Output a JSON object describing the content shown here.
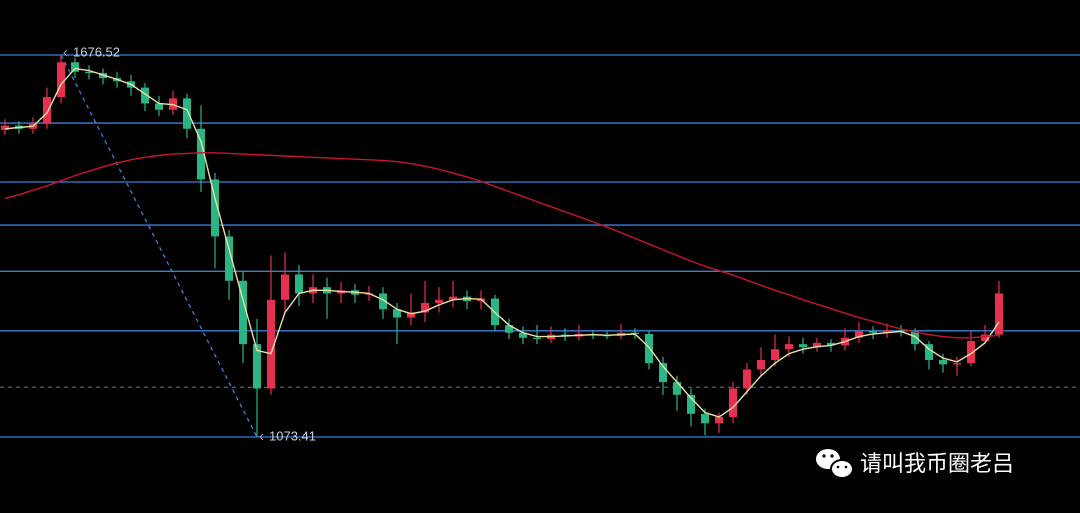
{
  "chart_data": {
    "type": "candlestick",
    "open": [
      1558,
      1565,
      1560,
      1568,
      1610,
      1665,
      1650,
      1648,
      1640,
      1635,
      1625,
      1600,
      1590,
      1608,
      1560,
      1480,
      1390,
      1320,
      1220,
      1150,
      1290,
      1330,
      1300,
      1310,
      1300,
      1305,
      1298,
      1300,
      1275,
      1262,
      1270,
      1285,
      1290,
      1295,
      1288,
      1292,
      1250,
      1238,
      1230,
      1228,
      1235,
      1232,
      1236,
      1234,
      1233,
      1238,
      1236,
      1190,
      1160,
      1140,
      1110,
      1095,
      1105,
      1150,
      1180,
      1195,
      1212,
      1220,
      1215,
      1222,
      1218,
      1230,
      1240,
      1238,
      1242,
      1240,
      1220,
      1195,
      1188,
      1190,
      1225,
      1235
    ],
    "high": [
      1575,
      1572,
      1578,
      1625,
      1676.52,
      1672,
      1660,
      1655,
      1650,
      1645,
      1632,
      1612,
      1620,
      1615,
      1597,
      1490,
      1400,
      1335,
      1260,
      1360,
      1365,
      1345,
      1330,
      1325,
      1318,
      1315,
      1312,
      1310,
      1285,
      1300,
      1320,
      1310,
      1320,
      1305,
      1305,
      1298,
      1260,
      1248,
      1250,
      1248,
      1245,
      1250,
      1242,
      1240,
      1252,
      1245,
      1240,
      1200,
      1170,
      1150,
      1118,
      1112,
      1160,
      1190,
      1215,
      1235,
      1232,
      1230,
      1230,
      1228,
      1245,
      1255,
      1248,
      1252,
      1250,
      1245,
      1225,
      1205,
      1200,
      1240,
      1250,
      1320
    ],
    "low": [
      1550,
      1552,
      1552,
      1560,
      1600,
      1640,
      1638,
      1630,
      1625,
      1612,
      1588,
      1580,
      1582,
      1545,
      1460,
      1340,
      1290,
      1190,
      1073.41,
      1140,
      1270,
      1280,
      1285,
      1260,
      1285,
      1285,
      1288,
      1260,
      1220,
      1250,
      1255,
      1270,
      1278,
      1275,
      1275,
      1240,
      1228,
      1220,
      1220,
      1222,
      1225,
      1226,
      1228,
      1228,
      1228,
      1228,
      1180,
      1140,
      1115,
      1090,
      1076,
      1080,
      1095,
      1140,
      1170,
      1185,
      1200,
      1205,
      1208,
      1208,
      1210,
      1222,
      1228,
      1230,
      1232,
      1210,
      1180,
      1175,
      1170,
      1185,
      1220,
      1230
    ],
    "close": [
      1565,
      1560,
      1568,
      1610,
      1665,
      1650,
      1648,
      1640,
      1635,
      1625,
      1600,
      1590,
      1608,
      1560,
      1480,
      1390,
      1320,
      1220,
      1150,
      1290,
      1330,
      1300,
      1310,
      1300,
      1305,
      1298,
      1300,
      1275,
      1262,
      1270,
      1285,
      1290,
      1295,
      1288,
      1292,
      1250,
      1238,
      1230,
      1228,
      1235,
      1232,
      1236,
      1234,
      1233,
      1238,
      1236,
      1190,
      1160,
      1140,
      1110,
      1095,
      1105,
      1150,
      1180,
      1195,
      1212,
      1220,
      1215,
      1222,
      1218,
      1230,
      1240,
      1238,
      1242,
      1240,
      1220,
      1195,
      1188,
      1190,
      1225,
      1235,
      1300
    ],
    "up_color": "#e5304f",
    "down_color": "#2bb585",
    "overlays": [
      {
        "color": "#e8e2a2",
        "values": [
          1560,
          1562,
          1564,
          1585,
          1630,
          1655,
          1652,
          1645,
          1638,
          1630,
          1615,
          1600,
          1598,
          1590,
          1540,
          1450,
          1370,
          1290,
          1210,
          1205,
          1270,
          1300,
          1305,
          1305,
          1303,
          1302,
          1300,
          1290,
          1275,
          1268,
          1272,
          1282,
          1290,
          1292,
          1291,
          1270,
          1250,
          1238,
          1232,
          1232,
          1233,
          1234,
          1235,
          1234,
          1235,
          1236,
          1215,
          1185,
          1160,
          1135,
          1112,
          1105,
          1120,
          1145,
          1170,
          1190,
          1205,
          1212,
          1216,
          1218,
          1224,
          1232,
          1236,
          1238,
          1240,
          1232,
          1212,
          1198,
          1192,
          1205,
          1222,
          1255
        ]
      },
      {
        "color": "#c8142e",
        "values": [
          1450,
          1456,
          1463,
          1470,
          1478,
          1486,
          1493,
          1500,
          1506,
          1511,
          1515,
          1518,
          1520,
          1521,
          1522,
          1522,
          1521,
          1520,
          1519,
          1518,
          1517,
          1516,
          1515,
          1514,
          1513,
          1512,
          1511,
          1510,
          1508,
          1505,
          1501,
          1496,
          1490,
          1484,
          1477,
          1469,
          1461,
          1453,
          1445,
          1437,
          1429,
          1421,
          1413,
          1405,
          1396,
          1387,
          1378,
          1369,
          1360,
          1351,
          1343,
          1336,
          1329,
          1321,
          1313,
          1305,
          1298,
          1290,
          1283,
          1276,
          1269,
          1262,
          1256,
          1250,
          1244,
          1239,
          1235,
          1232,
          1230,
          1230,
          1232,
          1234
        ]
      }
    ],
    "levels": [
      1676.52,
      1569,
      1476,
      1408,
      1335,
      1241,
      1073.41
    ],
    "level_color": "#3b7fd8",
    "dashed_level": 1152,
    "ylim": [
      953.4,
      1763.3
    ],
    "watermark": "请叫我币圈老吕"
  }
}
